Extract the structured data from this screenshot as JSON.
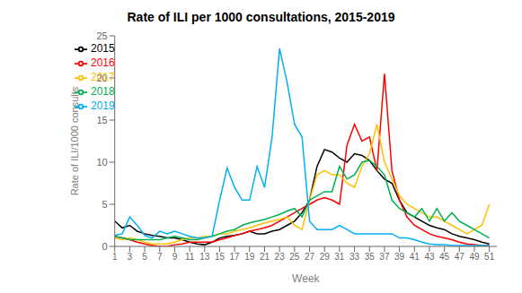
{
  "chart_data": {
    "type": "line",
    "title": "Rate of ILI per 1000 consultations, 2015-2019",
    "xlabel": "Week",
    "ylabel": "Rate of ILI/1000 consults",
    "xlim": [
      1,
      52
    ],
    "xticks": [
      1,
      3,
      5,
      7,
      9,
      11,
      13,
      15,
      17,
      19,
      21,
      23,
      25,
      27,
      29,
      31,
      33,
      35,
      37,
      39,
      41,
      43,
      45,
      47,
      49,
      51
    ],
    "ylim": [
      0,
      25
    ],
    "yticks": [
      0,
      5,
      10,
      15,
      20,
      25
    ],
    "grid": false,
    "legend": "upper left",
    "x": [
      1,
      2,
      3,
      4,
      5,
      6,
      7,
      8,
      9,
      10,
      11,
      12,
      13,
      14,
      15,
      16,
      17,
      18,
      19,
      20,
      21,
      22,
      23,
      24,
      25,
      26,
      27,
      28,
      29,
      30,
      31,
      32,
      33,
      34,
      35,
      36,
      37,
      38,
      39,
      40,
      41,
      42,
      43,
      44,
      45,
      46,
      47,
      48,
      49,
      50,
      51
    ],
    "series": [
      {
        "name": "2015",
        "color": "#000000",
        "values": [
          3.0,
          2.2,
          2.5,
          1.8,
          1.5,
          1.3,
          1.2,
          1.0,
          1.0,
          0.8,
          0.5,
          0.3,
          0.2,
          0.5,
          1.0,
          1.2,
          1.3,
          1.5,
          1.8,
          1.5,
          1.5,
          1.8,
          2.0,
          2.5,
          3.0,
          4.0,
          5.5,
          9.5,
          11.5,
          11.2,
          10.5,
          10.0,
          11.0,
          10.8,
          10.2,
          9.0,
          8.0,
          7.5,
          5.5,
          4.0,
          3.5,
          3.0,
          2.5,
          2.2,
          2.0,
          1.5,
          1.2,
          1.0,
          0.8,
          0.5,
          0.3
        ]
      },
      {
        "name": "2016",
        "color": "#ff0000",
        "values": [
          1.2,
          1.0,
          0.8,
          0.5,
          0.3,
          0.1,
          0.0,
          0.0,
          0.2,
          0.3,
          0.5,
          0.5,
          0.5,
          0.5,
          0.8,
          1.0,
          1.3,
          1.5,
          1.8,
          2.0,
          2.2,
          2.5,
          3.0,
          3.5,
          4.0,
          4.5,
          5.0,
          5.5,
          5.8,
          5.5,
          5.0,
          12.0,
          14.5,
          12.5,
          13.0,
          9.0,
          20.5,
          9.0,
          5.5,
          3.5,
          2.5,
          2.0,
          1.5,
          1.2,
          1.0,
          0.8,
          0.5,
          0.3,
          0.2,
          0.1,
          0.1
        ]
      },
      {
        "name": "2017",
        "color": "#ffc000",
        "values": [
          1.0,
          0.8,
          1.0,
          0.8,
          0.5,
          0.3,
          0.3,
          0.3,
          0.5,
          0.8,
          1.0,
          1.0,
          1.2,
          1.2,
          1.5,
          1.5,
          1.8,
          2.0,
          2.2,
          2.5,
          2.8,
          3.0,
          3.2,
          3.5,
          2.5,
          2.0,
          5.5,
          8.5,
          9.0,
          8.5,
          8.5,
          7.5,
          7.0,
          9.5,
          11.0,
          14.5,
          10.0,
          8.0,
          6.0,
          5.0,
          4.5,
          4.0,
          3.5,
          3.5,
          3.0,
          2.5,
          2.0,
          1.5,
          2.0,
          2.5,
          5.0
        ]
      },
      {
        "name": "2018",
        "color": "#00b050",
        "values": [
          1.2,
          1.0,
          0.8,
          0.8,
          0.8,
          0.8,
          0.8,
          1.0,
          1.2,
          1.0,
          0.8,
          0.8,
          1.0,
          1.2,
          1.5,
          1.8,
          2.0,
          2.5,
          2.8,
          3.0,
          3.2,
          3.5,
          3.8,
          4.2,
          4.5,
          3.5,
          5.5,
          6.0,
          6.5,
          6.5,
          9.5,
          8.0,
          8.5,
          10.0,
          10.2,
          9.5,
          8.5,
          5.5,
          4.5,
          4.0,
          3.5,
          4.5,
          3.0,
          4.5,
          3.0,
          4.0,
          3.0,
          2.5,
          2.0,
          1.5,
          1.0
        ]
      },
      {
        "name": "2019",
        "color": "#00b0f0",
        "values": [
          1.3,
          1.5,
          3.5,
          2.5,
          1.3,
          1.0,
          1.8,
          1.5,
          1.8,
          1.5,
          1.2,
          1.0,
          1.0,
          1.2,
          5.5,
          9.3,
          7.0,
          5.5,
          5.5,
          9.5,
          7.0,
          13.0,
          23.5,
          19.5,
          14.5,
          13.0,
          3.0,
          2.0,
          2.0,
          2.0,
          2.5,
          2.0,
          1.5,
          1.5,
          1.5,
          1.5,
          1.5,
          1.5,
          1.0,
          1.0,
          0.8,
          0.5,
          0.3,
          0.2,
          0.2,
          0.1,
          0.1,
          0.1,
          0.1,
          0.1,
          0.1
        ]
      }
    ]
  }
}
